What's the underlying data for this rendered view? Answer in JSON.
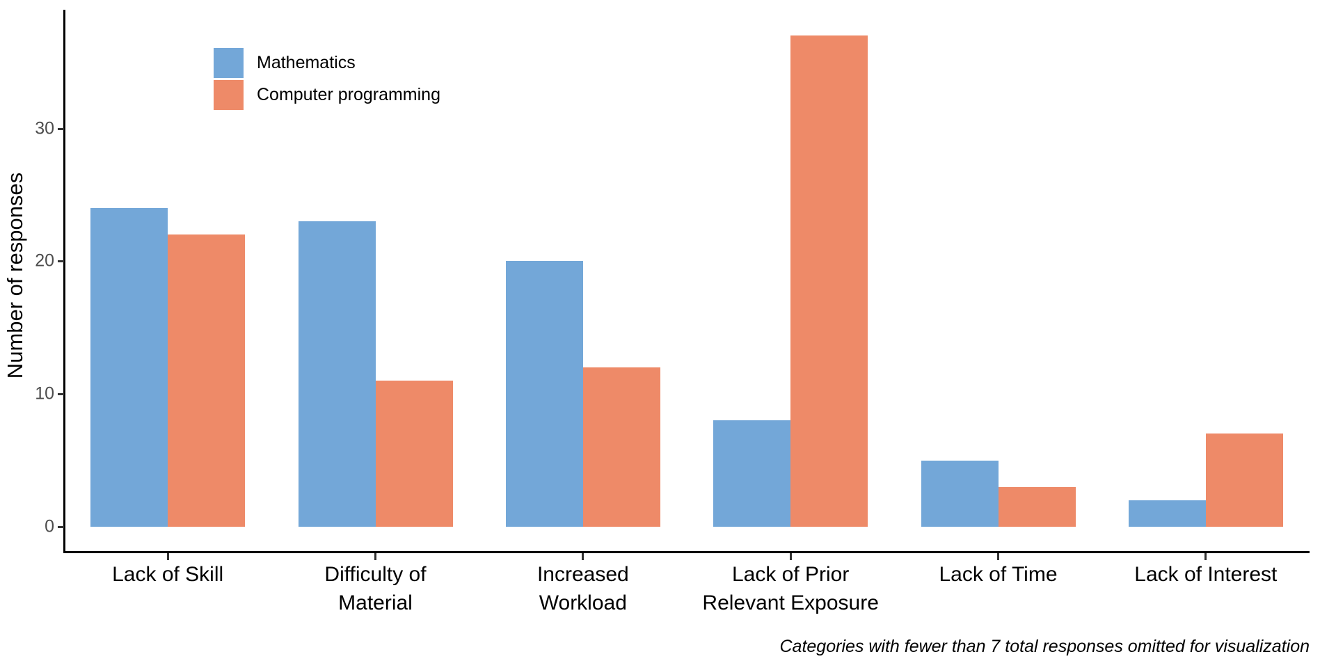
{
  "chart_data": {
    "type": "bar",
    "title": "",
    "xlabel": "",
    "ylabel": "Number of responses",
    "categories": [
      "Lack of Skill",
      "Difficulty of\nMaterial",
      "Increased\nWorkload",
      "Lack of Prior\nRelevant Exposure",
      "Lack of Time",
      "Lack of Interest"
    ],
    "series": [
      {
        "name": "Mathematics",
        "color": "#73A7D8",
        "values": [
          24,
          23,
          20,
          8,
          5,
          2
        ]
      },
      {
        "name": "Computer programming",
        "color": "#EE8A68",
        "values": [
          22,
          11,
          12,
          37,
          3,
          7
        ]
      }
    ],
    "ylim": [
      0,
      37
    ],
    "yticks": [
      0,
      10,
      20,
      30
    ],
    "grid": false,
    "legend_position": "inside-top-left",
    "caption": "Categories with fewer than 7 total responses omitted for visualization"
  },
  "colors": {
    "background": "#ffffff",
    "axis_line": "#000000",
    "tick_mark": "#333333",
    "y_tick_text": "#4d4d4d",
    "x_tick_text": "#000000",
    "mathematics_bar": "#73A7D8",
    "programming_bar": "#EE8A68"
  }
}
